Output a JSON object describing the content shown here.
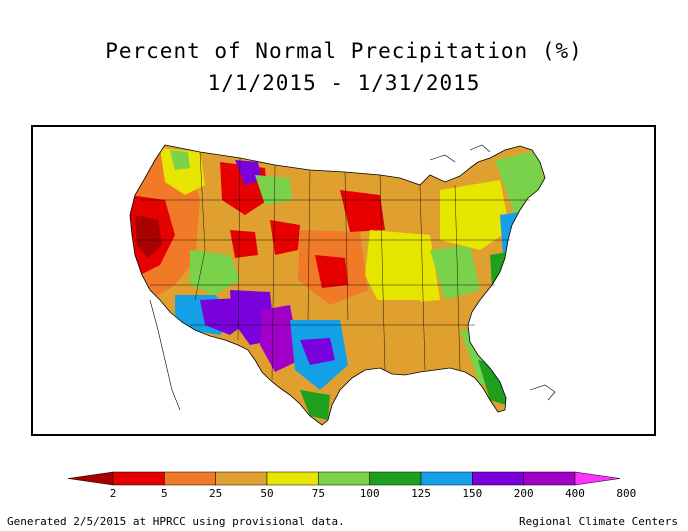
{
  "title": {
    "line1": "Percent of Normal Precipitation (%)",
    "line2": "1/1/2015 - 1/31/2015"
  },
  "legend": {
    "colors": [
      "#a80000",
      "#e60000",
      "#f07a28",
      "#e0a030",
      "#e6e600",
      "#7ad24a",
      "#1ea01e",
      "#14a0e6",
      "#7a00dc",
      "#a000c8",
      "#ff32ff"
    ],
    "labels": [
      "2",
      "5",
      "25",
      "50",
      "75",
      "100",
      "125",
      "150",
      "200",
      "400",
      "800"
    ]
  },
  "footer": {
    "left": "Generated 2/5/2015 at HPRCC using provisional data.",
    "right": "Regional Climate Centers"
  }
}
